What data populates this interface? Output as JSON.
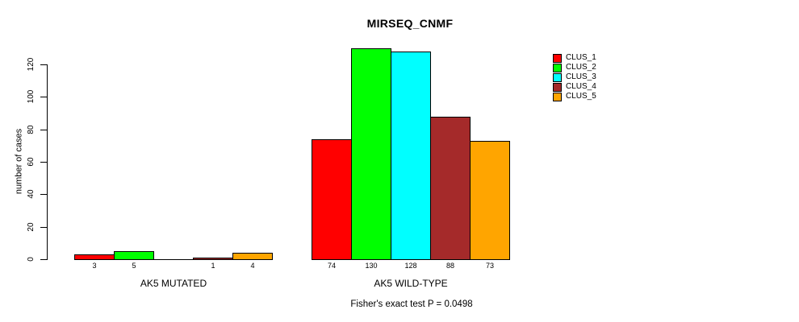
{
  "chart_data": {
    "type": "bar",
    "title": "MIRSEQ_CNMF",
    "ylabel": "number of cases",
    "xlabel": "",
    "categories": [
      "AK5 MUTATED",
      "AK5 WILD-TYPE"
    ],
    "series": [
      {
        "name": "CLUS_1",
        "color": "#FF0000",
        "values": [
          3,
          74
        ]
      },
      {
        "name": "CLUS_2",
        "color": "#00FF00",
        "values": [
          5,
          130
        ]
      },
      {
        "name": "CLUS_3",
        "color": "#00FFFF",
        "values": [
          0,
          128
        ]
      },
      {
        "name": "CLUS_4",
        "color": "#A52A2A",
        "values": [
          1,
          88
        ]
      },
      {
        "name": "CLUS_5",
        "color": "#FFA500",
        "values": [
          4,
          73
        ]
      }
    ],
    "yticks": [
      0,
      20,
      40,
      60,
      80,
      100,
      120
    ],
    "ylim": [
      0,
      130
    ],
    "grid": false,
    "legend_position": "right",
    "bar_outline_color": "#000000",
    "bar_value_labels_shown": true,
    "zero_value_labels_hidden": true,
    "annotation": "Fisher's exact test P = 0.0498"
  }
}
